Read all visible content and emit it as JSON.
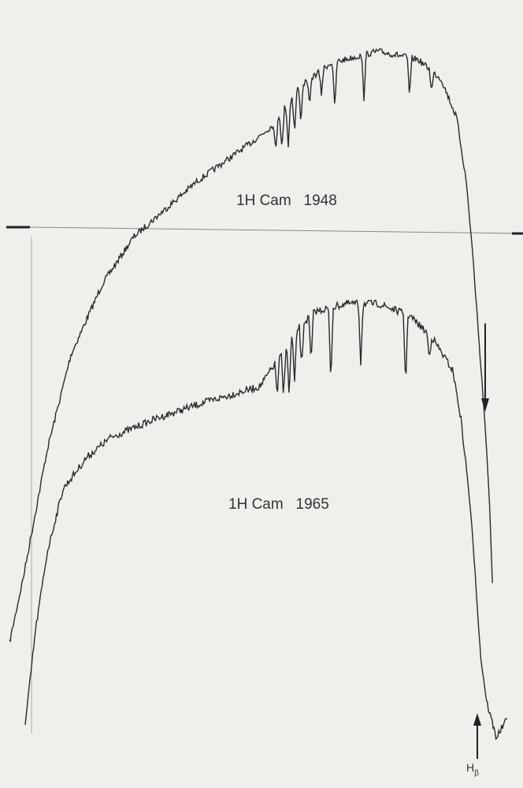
{
  "labels": {
    "top": "1H Cam   1948",
    "bottom": "1H Cam   1965",
    "marker": "H",
    "marker_sub": "β"
  }
}
